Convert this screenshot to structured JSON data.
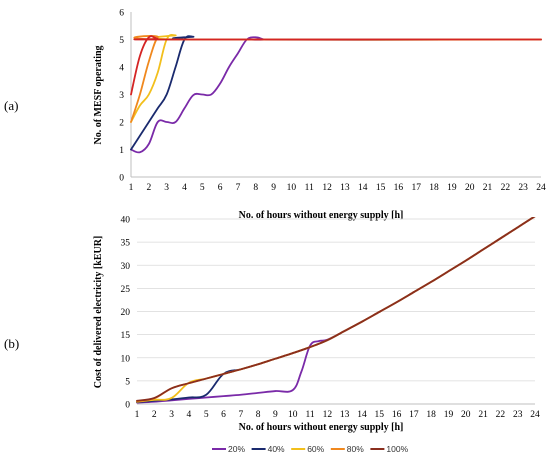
{
  "chart_data": [
    {
      "panel": "(a)",
      "type": "line",
      "xlabel": "No. of hours without energy supply [h]",
      "ylabel": "No. of MESF operating",
      "xlim": [
        1,
        24
      ],
      "ylim": [
        0,
        6
      ],
      "xticks": [
        1,
        2,
        3,
        4,
        5,
        6,
        7,
        8,
        9,
        10,
        11,
        12,
        13,
        14,
        15,
        16,
        17,
        18,
        19,
        20,
        21,
        22,
        23,
        24
      ],
      "yticks": [
        0,
        1,
        2,
        3,
        4,
        5,
        6
      ],
      "grid": false,
      "series": [
        {
          "color": "#7a2aa8",
          "x": [
            1,
            1.5,
            2,
            2.5,
            3,
            3.5,
            4,
            4.5,
            5,
            5.5,
            6,
            6.5,
            7,
            7.5,
            8,
            8.5,
            9,
            24
          ],
          "values": [
            1,
            0.9,
            1.2,
            2.0,
            2.0,
            2.0,
            2.5,
            2.98,
            3.0,
            3.0,
            3.4,
            4.0,
            4.5,
            5.0,
            5.08,
            5.0,
            5.0,
            5.0
          ]
        },
        {
          "color": "#1a2a6e",
          "x": [
            1,
            1.5,
            2,
            2.5,
            3,
            3.5,
            4,
            4.5,
            5,
            24
          ],
          "values": [
            1,
            1.5,
            2.0,
            2.5,
            3.0,
            4.0,
            5.0,
            5.1,
            5.0,
            5.0
          ]
        },
        {
          "color": "#f2bf1c",
          "x": [
            1,
            1.5,
            2,
            2.5,
            3,
            3.5,
            4,
            24
          ],
          "values": [
            2,
            2.6,
            3.0,
            3.8,
            5.0,
            5.15,
            5.0,
            5.0
          ]
        },
        {
          "color": "#f0881e",
          "x": [
            1,
            1.5,
            2,
            2.5,
            3,
            24
          ],
          "values": [
            2,
            3.0,
            4.2,
            5.08,
            5.0,
            5.0
          ]
        },
        {
          "color": "#d42424",
          "x": [
            1,
            1.5,
            2,
            2.5,
            3,
            24
          ],
          "values": [
            3,
            4.4,
            5.08,
            5.02,
            5.0,
            5.0
          ]
        }
      ]
    },
    {
      "panel": "(b)",
      "type": "line",
      "xlabel": "No. of hours without energy supply [h]",
      "ylabel": "Cost of delivered electricity [kEUR]",
      "xlim": [
        1,
        24
      ],
      "ylim": [
        0,
        40
      ],
      "xticks": [
        1,
        2,
        3,
        4,
        5,
        6,
        7,
        8,
        9,
        10,
        11,
        12,
        13,
        14,
        15,
        16,
        17,
        18,
        19,
        20,
        21,
        22,
        23,
        24
      ],
      "yticks": [
        0,
        5,
        10,
        15,
        20,
        25,
        30,
        35,
        40
      ],
      "grid": true,
      "legend": "bottom",
      "series": [
        {
          "name": "20%",
          "color": "#7a2aa8",
          "x": [
            1,
            2,
            3,
            4,
            5,
            6,
            7,
            8,
            9,
            10,
            10.5,
            11,
            11.5,
            12,
            13,
            14,
            15,
            16,
            17,
            18,
            19,
            20,
            21,
            22,
            23,
            24
          ],
          "values": [
            0.3,
            0.5,
            0.8,
            1.1,
            1.4,
            1.7,
            2.0,
            2.4,
            2.8,
            3.0,
            7.0,
            12.6,
            13.6,
            13.9,
            15.8,
            17.8,
            19.9,
            22.0,
            24.2,
            26.4,
            28.7,
            31.0,
            33.4,
            35.8,
            38.2,
            40.6
          ]
        },
        {
          "name": "40%",
          "color": "#1a2a6e",
          "x": [
            1,
            2,
            3,
            4,
            5,
            6,
            7,
            8,
            9,
            10,
            11,
            12,
            13,
            14,
            15,
            16,
            17,
            18,
            19,
            20,
            21,
            22,
            23,
            24
          ],
          "values": [
            0.4,
            0.7,
            1.0,
            1.4,
            2.0,
            6.5,
            7.5,
            8.6,
            9.8,
            11.0,
            12.3,
            13.8,
            15.8,
            17.8,
            19.9,
            22.0,
            24.2,
            26.4,
            28.7,
            31.0,
            33.4,
            35.8,
            38.2,
            40.6
          ]
        },
        {
          "name": "60%",
          "color": "#f2bf1c",
          "x": [
            1,
            2,
            3,
            4,
            5,
            6,
            7,
            8,
            9,
            10,
            11,
            12,
            13,
            14,
            15,
            16,
            17,
            18,
            19,
            20,
            21,
            22,
            23,
            24
          ],
          "values": [
            0.5,
            0.9,
            1.3,
            4.6,
            5.5,
            6.5,
            7.5,
            8.6,
            9.8,
            11.0,
            12.3,
            13.8,
            15.8,
            17.8,
            19.9,
            22.0,
            24.2,
            26.4,
            28.7,
            31.0,
            33.4,
            35.8,
            38.2,
            40.6
          ]
        },
        {
          "name": "80%",
          "color": "#f0881e",
          "x": [
            1,
            2,
            3,
            4,
            5,
            6,
            7,
            8,
            9,
            10,
            11,
            12,
            13,
            14,
            15,
            16,
            17,
            18,
            19,
            20,
            21,
            22,
            23,
            24
          ],
          "values": [
            0.6,
            1.2,
            3.4,
            4.5,
            5.5,
            6.5,
            7.5,
            8.6,
            9.8,
            11.0,
            12.3,
            13.8,
            15.8,
            17.8,
            19.9,
            22.0,
            24.2,
            26.4,
            28.7,
            31.0,
            33.4,
            35.8,
            38.2,
            40.6
          ]
        },
        {
          "name": "100%",
          "color": "#8a2e1e",
          "x": [
            1,
            2,
            3,
            4,
            5,
            6,
            7,
            8,
            9,
            10,
            11,
            12,
            13,
            14,
            15,
            16,
            17,
            18,
            19,
            20,
            21,
            22,
            23,
            24
          ],
          "values": [
            0.7,
            1.3,
            3.4,
            4.5,
            5.5,
            6.5,
            7.5,
            8.6,
            9.8,
            11.0,
            12.3,
            13.8,
            15.8,
            17.8,
            19.9,
            22.0,
            24.2,
            26.4,
            28.7,
            31.0,
            33.4,
            35.8,
            38.2,
            40.6
          ]
        }
      ]
    }
  ]
}
